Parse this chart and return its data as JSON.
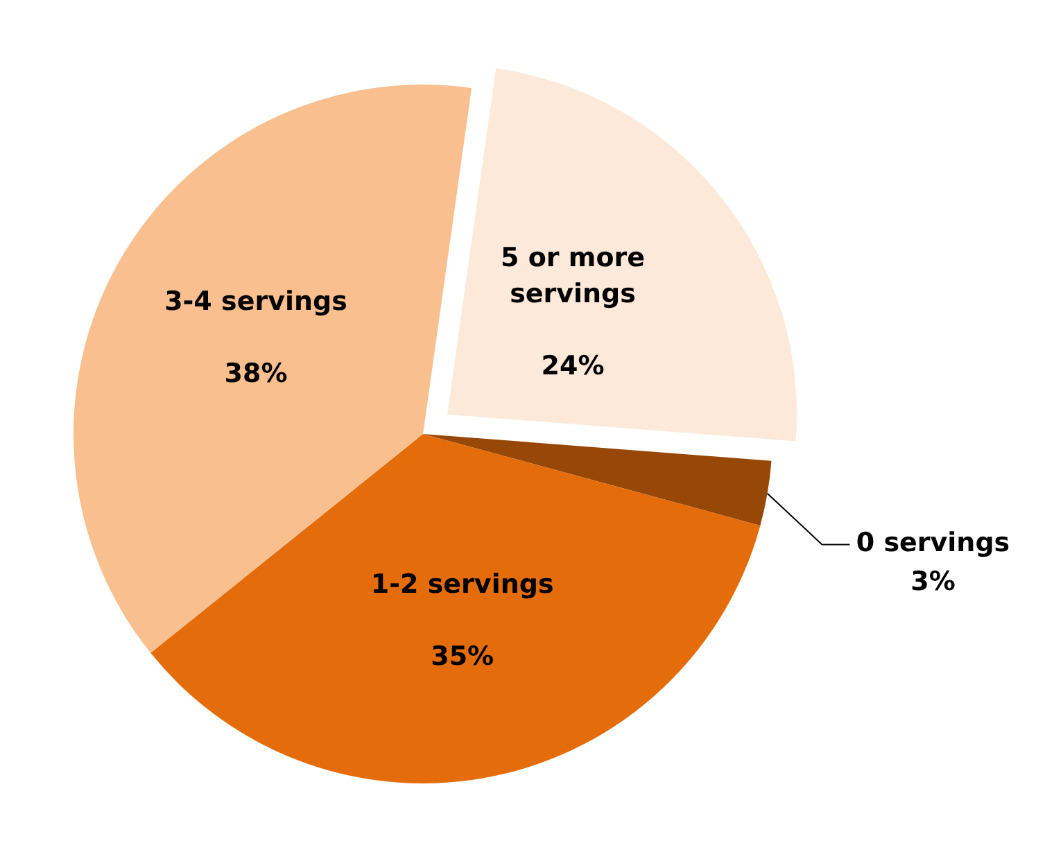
{
  "chart_data": {
    "type": "pie",
    "categories": [
      "5 or more servings",
      "0 servings",
      "1-2 servings",
      "3-4 servings"
    ],
    "values": [
      24,
      3,
      35,
      38
    ],
    "colors": [
      "#fde9d9",
      "#974706",
      "#e46c0a",
      "#f9bf8f"
    ],
    "value_labels": [
      "24%",
      "3%",
      "35%",
      "38%"
    ],
    "legend": false
  }
}
